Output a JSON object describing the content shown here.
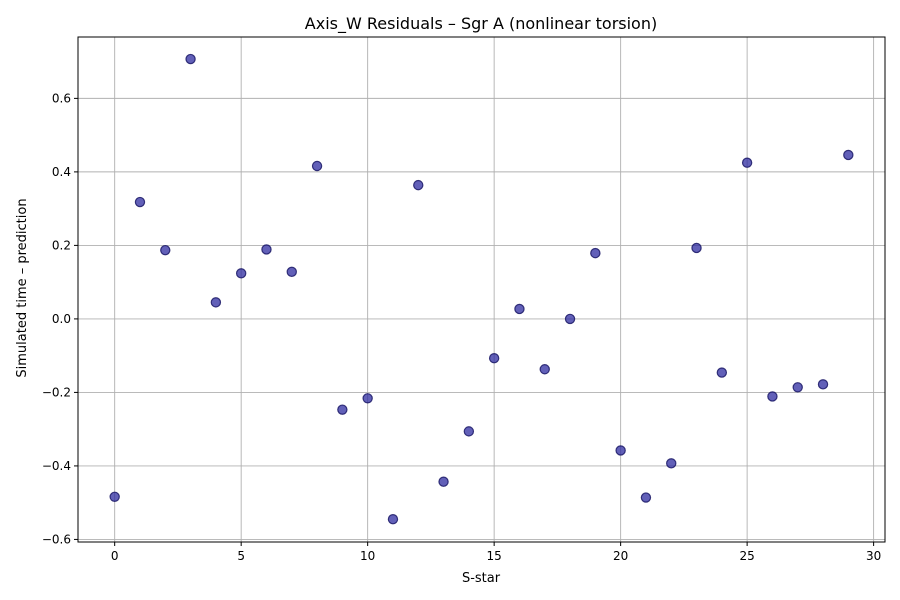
{
  "chart_data": {
    "type": "scatter",
    "title": "Axis_W Residuals – Sgr A (nonlinear torsion)",
    "xlabel": "S-star",
    "ylabel": "Simulated time – prediction",
    "xlim": [
      -1.45,
      30.45
    ],
    "ylim": [
      -0.607,
      0.767
    ],
    "xticks": [
      0,
      5,
      10,
      15,
      20,
      25,
      30
    ],
    "xtick_labels": [
      "0",
      "5",
      "10",
      "15",
      "20",
      "25",
      "30"
    ],
    "yticks": [
      -0.6,
      -0.4,
      -0.2,
      0.0,
      0.2,
      0.4,
      0.6
    ],
    "ytick_labels": [
      "−0.6",
      "−0.4",
      "−0.2",
      "0.0",
      "0.2",
      "0.4",
      "0.6"
    ],
    "grid": true,
    "marker_color": "#2e2ba0",
    "marker_edge_color": "#1a1866",
    "marker_alpha": 0.75,
    "x": [
      0,
      1,
      2,
      3,
      4,
      5,
      6,
      7,
      8,
      9,
      10,
      11,
      12,
      13,
      14,
      15,
      16,
      17,
      18,
      19,
      20,
      21,
      22,
      23,
      24,
      25,
      26,
      27,
      28,
      29
    ],
    "y": [
      -0.484,
      0.318,
      0.187,
      0.707,
      0.045,
      0.124,
      0.189,
      0.128,
      0.416,
      -0.247,
      -0.216,
      -0.545,
      0.364,
      -0.443,
      -0.306,
      -0.107,
      0.027,
      -0.137,
      0.0,
      0.179,
      -0.358,
      -0.486,
      -0.393,
      0.193,
      -0.146,
      0.425,
      -0.211,
      -0.186,
      -0.178,
      0.446
    ]
  }
}
